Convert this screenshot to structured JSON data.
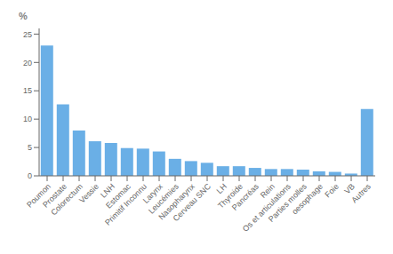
{
  "chart_data": {
    "type": "bar",
    "ylabel": "%",
    "categories": [
      "Poumon",
      "Prostate",
      "Colorectum",
      "Vessie",
      "LNH",
      "Estomac",
      "Primitif Inconnu",
      "Larynx",
      "Leucémies",
      "Nasopharynx",
      "Cerveau SNC",
      "LH",
      "Thyroide",
      "Pancréas",
      "Rein",
      "Os et articulations",
      "Parties molles",
      "oesophage",
      "Foie",
      "VB",
      "Autres"
    ],
    "values": [
      23.0,
      12.6,
      8.0,
      6.1,
      5.8,
      4.9,
      4.8,
      4.3,
      3.0,
      2.6,
      2.3,
      1.7,
      1.7,
      1.4,
      1.2,
      1.2,
      1.1,
      0.8,
      0.7,
      0.4,
      11.8
    ],
    "color": "#6AAFE6",
    "ylim": [
      0,
      26
    ],
    "yticks": [
      0,
      5,
      10,
      15,
      20,
      25
    ],
    "grid": false
  }
}
